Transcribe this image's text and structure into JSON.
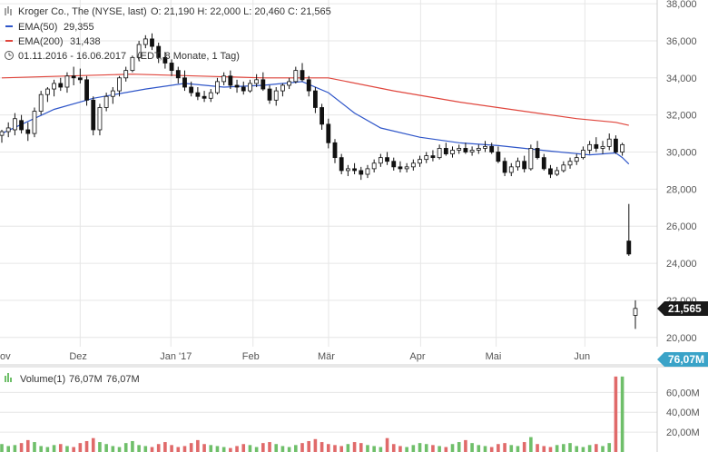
{
  "header": {
    "title": "Kroger Co., The (NYSE, last)",
    "ohlc": "O: 21,190  H: 22,000  L: 20,460  C: 21,565",
    "ema50_label": "EMA(50)",
    "ema50_value": "29,355",
    "ema200_label": "EMA(200)",
    "ema200_value": "31,438",
    "range": "01.11.2016 - 16.06.2017",
    "range_note": "(EDT, 8 Monate, 1 Tag)",
    "volume_label": "Volume(1)",
    "volume_value_1": "76,07M",
    "volume_value_2": "76,07M"
  },
  "price_badge": "21,565",
  "volume_badge": "76,07M",
  "colors": {
    "ema50": "#2f56c9",
    "ema200": "#e0463d",
    "volume_up": "#6fbf6a",
    "volume_down": "#e06a6a",
    "badge_price": "#1a1a1a",
    "badge_volume": "#3aa3c8",
    "grid": "#e6e6e6"
  },
  "chart_data": {
    "type": "candlestick",
    "ylim": [
      19500,
      38200
    ],
    "price_ticks": [
      "38,000",
      "36,000",
      "34,000",
      "32,000",
      "30,000",
      "28,000",
      "26,000",
      "24,000",
      "22,000",
      "20,000"
    ],
    "x_labels": [
      "ov",
      "Dez",
      "Jan '17",
      "Feb",
      "Mär",
      "Apr",
      "Mai",
      "Jun"
    ],
    "volume_ticks": [
      "60,00M",
      "40,00M",
      "20,00M"
    ],
    "volume_ylim": [
      0,
      85000000
    ],
    "candles": [
      [
        30.9,
        31.2,
        30.5,
        31.1
      ],
      [
        31.1,
        31.6,
        30.8,
        31.3
      ],
      [
        31.2,
        32.1,
        30.9,
        31.8
      ],
      [
        31.7,
        32.0,
        31.0,
        31.2
      ],
      [
        31.2,
        31.6,
        30.6,
        31.0
      ],
      [
        31.0,
        32.4,
        30.8,
        32.2
      ],
      [
        32.2,
        33.3,
        32.0,
        33.1
      ],
      [
        33.1,
        33.5,
        32.7,
        33.4
      ],
      [
        33.4,
        33.9,
        33.0,
        33.7
      ],
      [
        33.7,
        34.0,
        33.3,
        33.5
      ],
      [
        33.5,
        34.3,
        33.2,
        34.1
      ],
      [
        34.1,
        34.6,
        33.6,
        34.0
      ],
      [
        34.0,
        34.5,
        33.7,
        33.9
      ],
      [
        33.9,
        34.1,
        32.5,
        32.8
      ],
      [
        32.8,
        33.0,
        30.9,
        31.2
      ],
      [
        31.2,
        32.6,
        30.9,
        32.4
      ],
      [
        32.4,
        33.2,
        32.2,
        33.0
      ],
      [
        33.0,
        33.5,
        32.6,
        33.3
      ],
      [
        33.3,
        34.1,
        33.0,
        34.0
      ],
      [
        34.0,
        34.6,
        33.8,
        34.4
      ],
      [
        34.4,
        35.2,
        34.3,
        35.1
      ],
      [
        35.1,
        36.0,
        34.9,
        35.8
      ],
      [
        35.8,
        36.3,
        35.6,
        36.1
      ],
      [
        36.1,
        36.4,
        35.5,
        35.7
      ],
      [
        35.7,
        35.9,
        34.8,
        35.1
      ],
      [
        35.1,
        35.4,
        34.5,
        34.8
      ],
      [
        34.8,
        35.0,
        34.1,
        34.4
      ],
      [
        34.4,
        34.6,
        33.7,
        34.0
      ],
      [
        34.0,
        34.4,
        33.3,
        33.5
      ],
      [
        33.5,
        33.8,
        33.0,
        33.2
      ],
      [
        33.2,
        33.5,
        32.8,
        33.0
      ],
      [
        33.0,
        33.3,
        32.7,
        32.9
      ],
      [
        32.9,
        33.4,
        32.7,
        33.2
      ],
      [
        33.2,
        34.0,
        33.1,
        33.8
      ],
      [
        33.8,
        34.3,
        33.6,
        34.1
      ],
      [
        34.1,
        34.4,
        33.4,
        33.6
      ],
      [
        33.6,
        33.9,
        33.2,
        33.5
      ],
      [
        33.5,
        33.8,
        33.1,
        33.3
      ],
      [
        33.3,
        33.9,
        33.2,
        33.7
      ],
      [
        33.7,
        34.2,
        33.5,
        33.9
      ],
      [
        33.9,
        34.3,
        33.3,
        33.4
      ],
      [
        33.4,
        33.6,
        32.6,
        32.8
      ],
      [
        32.8,
        33.5,
        32.5,
        33.3
      ],
      [
        33.3,
        33.7,
        33.0,
        33.6
      ],
      [
        33.6,
        34.0,
        33.4,
        33.8
      ],
      [
        33.8,
        34.6,
        33.7,
        34.4
      ],
      [
        34.4,
        34.8,
        33.8,
        33.9
      ],
      [
        33.9,
        34.1,
        33.0,
        33.3
      ],
      [
        33.3,
        33.5,
        32.1,
        32.4
      ],
      [
        32.4,
        32.6,
        31.2,
        31.5
      ],
      [
        31.5,
        31.8,
        30.2,
        30.5
      ],
      [
        30.5,
        30.7,
        29.4,
        29.7
      ],
      [
        29.7,
        29.9,
        28.8,
        29.0
      ],
      [
        29.0,
        29.3,
        28.7,
        29.1
      ],
      [
        29.1,
        29.4,
        28.8,
        29.0
      ],
      [
        29.0,
        29.2,
        28.5,
        28.8
      ],
      [
        28.8,
        29.3,
        28.6,
        29.1
      ],
      [
        29.1,
        29.6,
        28.9,
        29.4
      ],
      [
        29.4,
        29.9,
        29.2,
        29.7
      ],
      [
        29.7,
        30.0,
        29.3,
        29.5
      ],
      [
        29.5,
        29.7,
        29.0,
        29.2
      ],
      [
        29.2,
        29.5,
        28.9,
        29.1
      ],
      [
        29.1,
        29.4,
        28.9,
        29.2
      ],
      [
        29.2,
        29.6,
        29.0,
        29.4
      ],
      [
        29.4,
        29.8,
        29.2,
        29.6
      ],
      [
        29.6,
        30.0,
        29.4,
        29.8
      ],
      [
        29.8,
        30.1,
        29.5,
        29.7
      ],
      [
        29.7,
        30.4,
        29.6,
        30.2
      ],
      [
        30.2,
        30.5,
        29.8,
        29.9
      ],
      [
        29.9,
        30.3,
        29.7,
        30.1
      ],
      [
        30.1,
        30.4,
        29.9,
        30.2
      ],
      [
        30.2,
        30.5,
        29.9,
        30.0
      ],
      [
        30.0,
        30.3,
        29.8,
        30.1
      ],
      [
        30.1,
        30.4,
        29.9,
        30.2
      ],
      [
        30.2,
        30.6,
        30.0,
        30.3
      ],
      [
        30.3,
        30.5,
        29.9,
        30.0
      ],
      [
        30.0,
        30.3,
        29.4,
        29.5
      ],
      [
        29.5,
        29.7,
        28.7,
        28.9
      ],
      [
        28.9,
        29.4,
        28.7,
        29.2
      ],
      [
        29.2,
        29.7,
        29.0,
        29.5
      ],
      [
        29.5,
        29.8,
        28.9,
        29.1
      ],
      [
        29.1,
        30.4,
        29.0,
        30.2
      ],
      [
        30.2,
        30.6,
        29.6,
        29.7
      ],
      [
        29.7,
        29.9,
        29.0,
        29.1
      ],
      [
        29.1,
        29.3,
        28.6,
        28.8
      ],
      [
        28.8,
        29.2,
        28.7,
        29.0
      ],
      [
        29.0,
        29.5,
        28.9,
        29.3
      ],
      [
        29.3,
        29.7,
        29.1,
        29.5
      ],
      [
        29.5,
        29.9,
        29.3,
        29.7
      ],
      [
        29.7,
        30.3,
        29.6,
        30.1
      ],
      [
        30.1,
        30.6,
        29.9,
        30.4
      ],
      [
        30.4,
        30.8,
        30.0,
        30.2
      ],
      [
        30.2,
        30.6,
        29.9,
        30.3
      ],
      [
        30.3,
        31.0,
        30.1,
        30.7
      ],
      [
        30.7,
        30.9,
        29.9,
        30.0
      ],
      [
        30.0,
        30.5,
        29.8,
        30.4
      ],
      [
        25.2,
        27.2,
        24.4,
        24.5
      ],
      [
        21.19,
        22.0,
        20.46,
        21.565
      ]
    ],
    "ema50": [
      [
        0,
        31.0
      ],
      [
        8,
        32.3
      ],
      [
        14,
        32.9
      ],
      [
        22,
        33.4
      ],
      [
        28,
        33.7
      ],
      [
        34,
        33.5
      ],
      [
        40,
        33.6
      ],
      [
        46,
        33.8
      ],
      [
        50,
        33.2
      ],
      [
        54,
        32.1
      ],
      [
        58,
        31.3
      ],
      [
        64,
        30.8
      ],
      [
        70,
        30.5
      ],
      [
        76,
        30.35
      ],
      [
        84,
        30.05
      ],
      [
        90,
        29.85
      ],
      [
        94,
        29.95
      ],
      [
        95,
        29.7
      ],
      [
        96,
        29.355
      ]
    ],
    "ema200": [
      [
        0,
        34.0
      ],
      [
        20,
        34.2
      ],
      [
        40,
        34.0
      ],
      [
        50,
        34.0
      ],
      [
        60,
        33.3
      ],
      [
        70,
        32.7
      ],
      [
        80,
        32.2
      ],
      [
        88,
        31.8
      ],
      [
        94,
        31.6
      ],
      [
        96,
        31.438
      ]
    ],
    "volume": [
      8,
      6,
      7,
      9,
      12,
      10,
      6,
      5,
      7,
      8,
      6,
      5,
      9,
      11,
      14,
      10,
      8,
      6,
      5,
      9,
      11,
      7,
      6,
      5,
      8,
      10,
      7,
      5,
      6,
      9,
      12,
      8,
      7,
      6,
      5,
      4,
      6,
      8,
      7,
      5,
      9,
      10,
      8,
      6,
      5,
      7,
      9,
      11,
      13,
      10,
      8,
      7,
      6,
      8,
      10,
      9,
      7,
      6,
      5,
      14,
      8,
      6,
      5,
      7,
      9,
      8,
      7,
      6,
      5,
      8,
      10,
      12,
      9,
      7,
      6,
      5,
      8,
      9,
      7,
      6,
      10,
      15,
      8,
      6,
      5,
      7,
      8,
      9,
      6,
      5,
      7,
      8,
      6,
      9,
      76,
      76
    ]
  }
}
